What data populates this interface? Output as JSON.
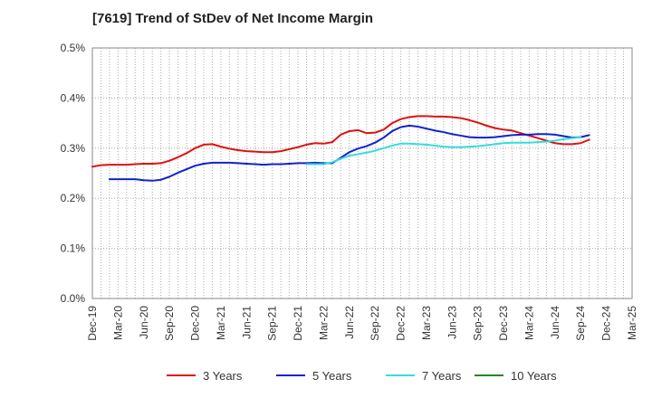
{
  "chart_data": {
    "type": "line",
    "title": "[7619]  Trend of StDev of Net Income Margin",
    "xlabel": "",
    "ylabel": "",
    "x_ticks": [
      "Dec-19",
      "Mar-20",
      "Jun-20",
      "Sep-20",
      "Dec-20",
      "Mar-21",
      "Jun-21",
      "Sep-21",
      "Dec-21",
      "Mar-22",
      "Jun-22",
      "Sep-22",
      "Dec-22",
      "Mar-23",
      "Jun-23",
      "Sep-23",
      "Dec-23",
      "Mar-24",
      "Jun-24",
      "Sep-24",
      "Dec-24",
      "Mar-25"
    ],
    "y_ticks": [
      "0.0%",
      "0.1%",
      "0.2%",
      "0.3%",
      "0.4%",
      "0.5%"
    ],
    "ylim": [
      0,
      0.5
    ],
    "grid": true,
    "legend_position": "bottom",
    "colors": {
      "3 Years": "#dd1111",
      "5 Years": "#1122cc",
      "7 Years": "#33dddd",
      "10 Years": "#228822"
    },
    "series": [
      {
        "name": "3 Years",
        "color": "#dd1111",
        "start_index": 0,
        "values": [
          0.263,
          0.266,
          0.267,
          0.267,
          0.267,
          0.268,
          0.269,
          0.269,
          0.27,
          0.275,
          0.282,
          0.29,
          0.3,
          0.307,
          0.308,
          0.303,
          0.299,
          0.296,
          0.294,
          0.293,
          0.292,
          0.292,
          0.294,
          0.298,
          0.302,
          0.307,
          0.31,
          0.309,
          0.312,
          0.327,
          0.334,
          0.336,
          0.33,
          0.331,
          0.337,
          0.35,
          0.358,
          0.362,
          0.364,
          0.364,
          0.363,
          0.363,
          0.362,
          0.36,
          0.356,
          0.351,
          0.345,
          0.34,
          0.337,
          0.335,
          0.33,
          0.325,
          0.32,
          0.315,
          0.31,
          0.308,
          0.308,
          0.31,
          0.317
        ]
      },
      {
        "name": "5 Years",
        "color": "#1122cc",
        "start_index": 2,
        "values": [
          0.238,
          0.238,
          0.238,
          0.238,
          0.236,
          0.235,
          0.237,
          0.243,
          0.251,
          0.258,
          0.265,
          0.269,
          0.271,
          0.271,
          0.271,
          0.27,
          0.269,
          0.268,
          0.267,
          0.268,
          0.268,
          0.269,
          0.27,
          0.27,
          0.271,
          0.27,
          0.27,
          0.281,
          0.292,
          0.299,
          0.304,
          0.311,
          0.321,
          0.334,
          0.342,
          0.345,
          0.343,
          0.339,
          0.335,
          0.332,
          0.328,
          0.325,
          0.322,
          0.321,
          0.321,
          0.322,
          0.324,
          0.326,
          0.327,
          0.327,
          0.328,
          0.328,
          0.327,
          0.324,
          0.321,
          0.322,
          0.326
        ]
      },
      {
        "name": "7 Years",
        "color": "#33dddd",
        "start_index": 25,
        "values": [
          0.268,
          0.268,
          0.268,
          0.272,
          0.279,
          0.285,
          0.288,
          0.291,
          0.295,
          0.3,
          0.305,
          0.309,
          0.309,
          0.308,
          0.307,
          0.305,
          0.303,
          0.302,
          0.302,
          0.303,
          0.304,
          0.306,
          0.308,
          0.31,
          0.311,
          0.311,
          0.311,
          0.312,
          0.313,
          0.315,
          0.318,
          0.32,
          0.322
        ]
      },
      {
        "name": "10 Years",
        "color": "#228822",
        "start_index": 0,
        "values": []
      }
    ]
  }
}
